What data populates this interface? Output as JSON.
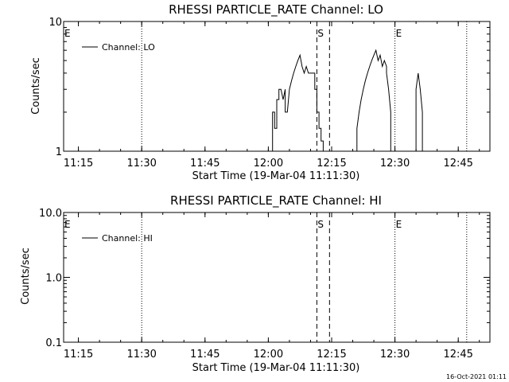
{
  "chart_data": [
    {
      "type": "line",
      "title": "RHESSI PARTICLE_RATE Channel: LO",
      "xlabel": "Start Time (19-Mar-04 11:11:30)",
      "ylabel": "Counts/sec",
      "yscale": "log",
      "ylim": [
        1,
        10
      ],
      "xlim": [
        "11:11:30",
        "12:52:30"
      ],
      "xticks": [
        "11:15",
        "11:30",
        "11:45",
        "12:00",
        "12:15",
        "12:30",
        "12:45"
      ],
      "yticks": [
        "1",
        "10"
      ],
      "legend_placement": "top-left",
      "series": [
        {
          "name": "Channel: LO",
          "x": [
            "12:01:00",
            "12:01:00",
            "12:01:30",
            "12:01:30",
            "12:02:00",
            "12:02:00",
            "12:02:30",
            "12:02:30",
            "12:03:00",
            "12:03:30",
            "12:04:00",
            "12:04:00",
            "12:04:30",
            "12:05:00",
            "12:05:30",
            "12:06:00",
            "12:06:30",
            "12:07:00",
            "12:07:30",
            "12:08:00",
            "12:08:30",
            "12:09:00",
            "12:09:30",
            "12:09:30",
            "12:10:00",
            "12:10:30",
            "12:11:00",
            "12:11:00",
            "12:11:30",
            "12:11:30",
            "12:12:00",
            "12:12:00",
            "12:12:30",
            "12:12:30",
            "12:13:00",
            "12:13:00",
            "12:21:00",
            "12:21:00",
            "12:21:30",
            "12:22:00",
            "12:22:30",
            "12:23:00",
            "12:23:30",
            "12:24:00",
            "12:24:30",
            "12:25:00",
            "12:25:30",
            "12:26:00",
            "12:26:30",
            "12:27:00",
            "12:27:30",
            "12:28:00",
            "12:28:00",
            "12:28:30",
            "12:29:00",
            "12:29:00",
            "12:35:00",
            "12:35:00",
            "12:35:30",
            "12:36:00",
            "12:36:30",
            "12:36:30"
          ],
          "y": [
            1,
            2,
            2,
            1.5,
            1.5,
            2.5,
            2.5,
            3,
            3,
            2.5,
            3,
            2,
            2,
            3,
            3.5,
            4,
            4.5,
            5,
            5.5,
            4.5,
            4,
            4.5,
            4,
            4,
            4,
            4,
            4,
            3,
            3,
            2,
            2,
            1.5,
            1.5,
            1.2,
            1.2,
            1,
            1,
            1.5,
            2,
            2.5,
            3,
            3.5,
            4,
            4.5,
            5,
            5.5,
            6,
            5,
            5.5,
            4.5,
            5,
            4.5,
            4,
            3,
            2,
            1,
            1,
            3,
            4,
            3,
            2,
            1
          ]
        }
      ],
      "markers": [
        {
          "label": "E",
          "time": "11:11:30"
        },
        {
          "label": "S",
          "time": "12:11:30"
        },
        {
          "label": "E",
          "time": "12:30:00"
        }
      ],
      "vlines_dotted": [
        "11:30:00",
        "12:30:00",
        "12:47:00"
      ],
      "vlines_dashed": [
        "12:11:30",
        "12:14:30"
      ]
    },
    {
      "type": "line",
      "title": "RHESSI PARTICLE_RATE Channel: HI",
      "xlabel": "Start Time (19-Mar-04 11:11:30)",
      "ylabel": "Counts/sec",
      "yscale": "log",
      "ylim": [
        0.1,
        10
      ],
      "xlim": [
        "11:11:30",
        "12:52:30"
      ],
      "xticks": [
        "11:15",
        "11:30",
        "11:45",
        "12:00",
        "12:15",
        "12:30",
        "12:45"
      ],
      "yticks": [
        "0.1",
        "1.0",
        "10.0"
      ],
      "legend_placement": "top-left",
      "series": [
        {
          "name": "Channel: HI",
          "x": [],
          "y": []
        }
      ],
      "markers": [
        {
          "label": "E",
          "time": "11:11:30"
        },
        {
          "label": "S",
          "time": "12:11:30"
        },
        {
          "label": "E",
          "time": "12:30:00"
        }
      ],
      "vlines_dotted": [
        "11:30:00",
        "12:30:00",
        "12:47:00"
      ],
      "vlines_dashed": [
        "12:11:30",
        "12:14:30"
      ]
    }
  ],
  "timestamp": "16-Oct-2021 01:11"
}
